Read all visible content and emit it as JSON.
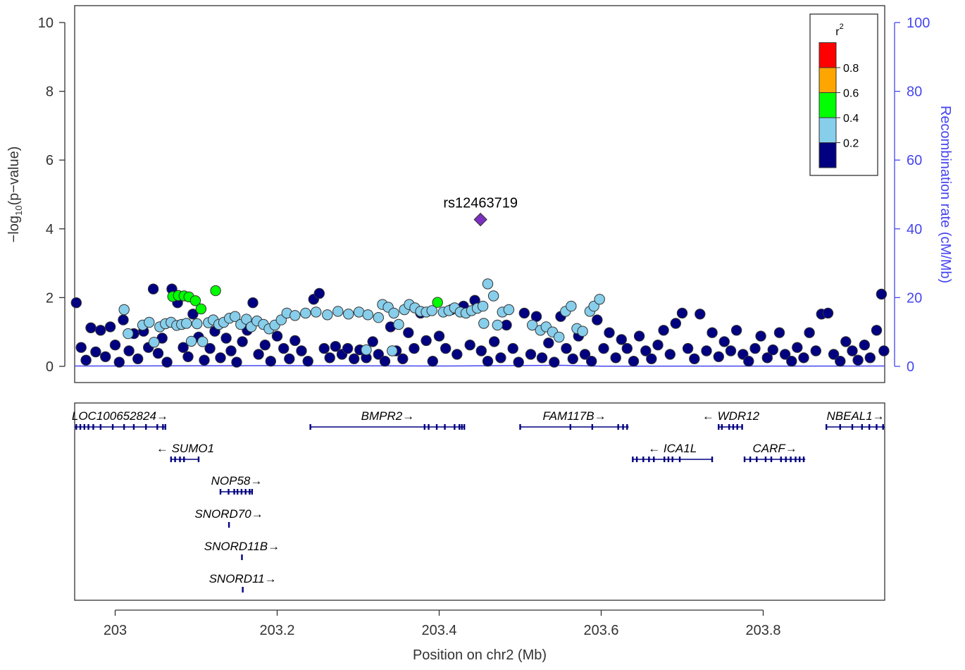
{
  "chart_data": {
    "type": "scatter",
    "xlabel": "Position on chr2 (Mb)",
    "ylabel": "−log₁₀(p−value)",
    "y2label": "Recombination rate (cM/Mb)",
    "xlim": [
      202.95,
      203.95
    ],
    "ylim": [
      -0.5,
      10.5
    ],
    "y2lim": [
      0,
      100
    ],
    "xticks": [
      "203",
      "203.2",
      "203.4",
      "203.6",
      "203.8"
    ],
    "yticks": [
      "0",
      "2",
      "4",
      "6",
      "8",
      "10"
    ],
    "y2ticks": [
      "0",
      "20",
      "40",
      "60",
      "80",
      "100"
    ],
    "legend": {
      "title": "r",
      "title_sup": "2",
      "position": "top-right",
      "bins": [
        {
          "color": "#000080",
          "label": "0.2"
        },
        {
          "color": "#87ceeb",
          "label": "0.4"
        },
        {
          "color": "#00ff00",
          "label": "0.6"
        },
        {
          "color": "#ffa500",
          "label": "0.8"
        },
        {
          "color": "#ff0000",
          "label": ""
        }
      ]
    },
    "lead_snp": {
      "label": "rs12463719",
      "x": 203.451,
      "y": 4.27,
      "color": "#7b2fbe"
    },
    "series": [
      {
        "color": "#00ff00",
        "r2_bin": "0.4-0.6",
        "points": [
          [
            203.071,
            2.03
          ],
          [
            203.078,
            2.06
          ],
          [
            203.085,
            2.05
          ],
          [
            203.091,
            2.02
          ],
          [
            203.099,
            1.91
          ],
          [
            203.106,
            1.67
          ],
          [
            203.124,
            2.2
          ],
          [
            203.398,
            1.86
          ]
        ]
      },
      {
        "color": "#87ceeb",
        "r2_bin": "0.2-0.4",
        "points": [
          [
            203.011,
            1.65
          ],
          [
            203.016,
            0.95
          ],
          [
            203.034,
            1.2
          ],
          [
            203.042,
            1.28
          ],
          [
            203.048,
            0.7
          ],
          [
            203.055,
            1.15
          ],
          [
            203.062,
            1.24
          ],
          [
            203.069,
            1.28
          ],
          [
            203.076,
            1.19
          ],
          [
            203.082,
            1.22
          ],
          [
            203.088,
            1.25
          ],
          [
            203.094,
            0.73
          ],
          [
            203.101,
            1.24
          ],
          [
            203.108,
            0.72
          ],
          [
            203.115,
            1.27
          ],
          [
            203.121,
            1.35
          ],
          [
            203.128,
            1.22
          ],
          [
            203.134,
            1.28
          ],
          [
            203.141,
            1.4
          ],
          [
            203.148,
            1.45
          ],
          [
            203.155,
            1.22
          ],
          [
            203.162,
            1.37
          ],
          [
            203.168,
            1.15
          ],
          [
            203.175,
            1.32
          ],
          [
            203.183,
            1.22
          ],
          [
            203.19,
            1.09
          ],
          [
            203.197,
            1.2
          ],
          [
            203.205,
            1.35
          ],
          [
            203.212,
            1.55
          ],
          [
            203.222,
            1.48
          ],
          [
            203.235,
            1.55
          ],
          [
            203.248,
            1.58
          ],
          [
            203.262,
            1.5
          ],
          [
            203.275,
            1.6
          ],
          [
            203.288,
            1.52
          ],
          [
            203.301,
            1.58
          ],
          [
            203.312,
            1.5
          ],
          [
            203.325,
            1.42
          ],
          [
            203.33,
            1.8
          ],
          [
            203.337,
            1.72
          ],
          [
            203.344,
            1.55
          ],
          [
            203.35,
            1.22
          ],
          [
            203.357,
            1.65
          ],
          [
            203.363,
            1.8
          ],
          [
            203.37,
            1.7
          ],
          [
            203.377,
            1.6
          ],
          [
            203.384,
            1.58
          ],
          [
            203.391,
            1.62
          ],
          [
            203.405,
            1.58
          ],
          [
            203.412,
            1.62
          ],
          [
            203.419,
            1.7
          ],
          [
            203.426,
            1.58
          ],
          [
            203.433,
            1.55
          ],
          [
            203.44,
            1.62
          ],
          [
            203.447,
            1.69
          ],
          [
            203.454,
            1.75
          ],
          [
            203.46,
            2.4
          ],
          [
            203.467,
            2.05
          ],
          [
            203.472,
            1.2
          ],
          [
            203.478,
            1.58
          ],
          [
            203.486,
            1.65
          ],
          [
            203.31,
            0.48
          ],
          [
            203.342,
            0.45
          ],
          [
            203.455,
            1.25
          ],
          [
            203.515,
            1.2
          ],
          [
            203.525,
            1.05
          ],
          [
            203.532,
            1.15
          ],
          [
            203.54,
            1.0
          ],
          [
            203.548,
            0.85
          ],
          [
            203.556,
            1.6
          ],
          [
            203.563,
            1.75
          ],
          [
            203.57,
            1.1
          ],
          [
            203.577,
            1.02
          ],
          [
            203.586,
            1.6
          ],
          [
            203.591,
            1.75
          ],
          [
            203.598,
            1.95
          ]
        ]
      },
      {
        "color": "#000080",
        "r2_bin": "0.0-0.2",
        "points": [
          [
            202.952,
            1.85
          ],
          [
            202.958,
            0.55
          ],
          [
            202.964,
            0.18
          ],
          [
            202.97,
            1.12
          ],
          [
            202.976,
            0.42
          ],
          [
            202.982,
            1.05
          ],
          [
            202.988,
            0.28
          ],
          [
            202.994,
            1.15
          ],
          [
            203.0,
            0.62
          ],
          [
            203.005,
            0.12
          ],
          [
            203.01,
            1.35
          ],
          [
            203.017,
            0.45
          ],
          [
            203.023,
            0.95
          ],
          [
            203.028,
            0.22
          ],
          [
            203.035,
            1.02
          ],
          [
            203.041,
            0.55
          ],
          [
            203.047,
            2.25
          ],
          [
            203.053,
            0.38
          ],
          [
            203.058,
            0.82
          ],
          [
            203.064,
            0.12
          ],
          [
            203.07,
            2.25
          ],
          [
            203.077,
            1.85
          ],
          [
            203.084,
            0.55
          ],
          [
            203.09,
            0.28
          ],
          [
            203.096,
            1.52
          ],
          [
            203.103,
            0.85
          ],
          [
            203.11,
            0.18
          ],
          [
            203.117,
            0.52
          ],
          [
            203.123,
            1.02
          ],
          [
            203.13,
            0.25
          ],
          [
            203.137,
            0.82
          ],
          [
            203.143,
            0.45
          ],
          [
            203.15,
            0.12
          ],
          [
            203.157,
            0.72
          ],
          [
            203.163,
            1.05
          ],
          [
            203.17,
            1.85
          ],
          [
            203.177,
            0.35
          ],
          [
            203.185,
            0.62
          ],
          [
            203.192,
            0.15
          ],
          [
            203.2,
            0.88
          ],
          [
            203.208,
            0.52
          ],
          [
            203.215,
            0.22
          ],
          [
            203.222,
            0.75
          ],
          [
            203.23,
            0.45
          ],
          [
            203.238,
            0.15
          ],
          [
            203.245,
            1.95
          ],
          [
            203.252,
            2.12
          ],
          [
            203.258,
            0.52
          ],
          [
            203.265,
            0.25
          ],
          [
            203.272,
            0.58
          ],
          [
            203.28,
            0.35
          ],
          [
            203.287,
            0.52
          ],
          [
            203.295,
            0.22
          ],
          [
            203.302,
            0.48
          ],
          [
            203.31,
            0.25
          ],
          [
            203.318,
            0.72
          ],
          [
            203.325,
            0.35
          ],
          [
            203.333,
            0.15
          ],
          [
            203.34,
            1.15
          ],
          [
            203.347,
            0.45
          ],
          [
            203.355,
            0.22
          ],
          [
            203.362,
            0.98
          ],
          [
            203.369,
            0.52
          ],
          [
            203.377,
            1.55
          ],
          [
            203.384,
            0.75
          ],
          [
            203.392,
            0.15
          ],
          [
            203.4,
            0.88
          ],
          [
            203.408,
            0.52
          ],
          [
            203.415,
            1.65
          ],
          [
            203.422,
            0.35
          ],
          [
            203.43,
            1.75
          ],
          [
            203.438,
            0.62
          ],
          [
            203.444,
            1.92
          ],
          [
            203.452,
            0.45
          ],
          [
            203.46,
            0.15
          ],
          [
            203.468,
            0.72
          ],
          [
            203.476,
            0.25
          ],
          [
            203.483,
            1.2
          ],
          [
            203.491,
            0.52
          ],
          [
            203.498,
            0.12
          ],
          [
            203.505,
            1.55
          ],
          [
            203.513,
            0.35
          ],
          [
            203.52,
            1.45
          ],
          [
            203.527,
            0.25
          ],
          [
            203.535,
            0.68
          ],
          [
            203.542,
            0.12
          ],
          [
            203.55,
            1.45
          ],
          [
            203.557,
            0.52
          ],
          [
            203.565,
            0.22
          ],
          [
            203.572,
            0.88
          ],
          [
            203.58,
            0.35
          ],
          [
            203.588,
            0.15
          ],
          [
            203.595,
            1.35
          ],
          [
            203.603,
            0.52
          ],
          [
            203.61,
            0.98
          ],
          [
            203.618,
            0.25
          ],
          [
            203.625,
            0.78
          ],
          [
            203.632,
            0.52
          ],
          [
            203.64,
            0.15
          ],
          [
            203.647,
            0.88
          ],
          [
            203.655,
            0.45
          ],
          [
            203.662,
            0.22
          ],
          [
            203.67,
            0.62
          ],
          [
            203.677,
            1.05
          ],
          [
            203.685,
            0.35
          ],
          [
            203.692,
            1.25
          ],
          [
            203.7,
            1.55
          ],
          [
            203.707,
            0.52
          ],
          [
            203.715,
            0.22
          ],
          [
            203.722,
            1.52
          ],
          [
            203.73,
            0.45
          ],
          [
            203.737,
            0.98
          ],
          [
            203.745,
            0.28
          ],
          [
            203.752,
            0.72
          ],
          [
            203.76,
            0.45
          ],
          [
            203.767,
            1.05
          ],
          [
            203.775,
            0.35
          ],
          [
            203.782,
            0.15
          ],
          [
            203.79,
            0.52
          ],
          [
            203.797,
            0.88
          ],
          [
            203.805,
            0.25
          ],
          [
            203.812,
            0.48
          ],
          [
            203.82,
            0.98
          ],
          [
            203.827,
            0.35
          ],
          [
            203.835,
            0.15
          ],
          [
            203.842,
            0.55
          ],
          [
            203.85,
            0.25
          ],
          [
            203.857,
            0.98
          ],
          [
            203.865,
            0.45
          ],
          [
            203.872,
            1.52
          ],
          [
            203.88,
            1.55
          ],
          [
            203.887,
            0.35
          ],
          [
            203.895,
            0.15
          ],
          [
            203.902,
            0.72
          ],
          [
            203.91,
            0.45
          ],
          [
            203.917,
            0.18
          ],
          [
            203.925,
            0.62
          ],
          [
            203.932,
            0.25
          ],
          [
            203.94,
            1.05
          ],
          [
            203.946,
            2.1
          ],
          [
            203.949,
            0.45
          ]
        ]
      }
    ],
    "recombination": [
      [
        202.95,
        0.1
      ],
      [
        203.2,
        0.2
      ],
      [
        203.4,
        0.1
      ],
      [
        203.55,
        0.3
      ],
      [
        203.6,
        0.05
      ],
      [
        203.95,
        0.1
      ]
    ],
    "genes": [
      {
        "name": "LOC100652824",
        "arrow": "→",
        "strand": "+",
        "start": 202.95,
        "end": 203.062,
        "row": 0,
        "exons": [
          202.952,
          202.957,
          202.962,
          202.967,
          202.973,
          202.982,
          202.997,
          203.011,
          203.023,
          203.038,
          203.052,
          203.059,
          203.062
        ]
      },
      {
        "name": "BMPR2",
        "arrow": "→",
        "strand": "+",
        "start": 203.241,
        "end": 203.432,
        "row": 0,
        "exons": [
          203.241,
          203.382,
          203.387,
          203.397,
          203.407,
          203.419,
          203.425,
          203.428,
          203.431
        ]
      },
      {
        "name": "FAM117B",
        "arrow": "→",
        "strand": "+",
        "start": 203.5,
        "end": 203.634,
        "row": 0,
        "exons": [
          203.5,
          203.562,
          203.589,
          203.621,
          203.627,
          203.632
        ]
      },
      {
        "name": "WDR12",
        "arrow": "←",
        "strand": "-",
        "start": 203.745,
        "end": 203.775,
        "row": 0,
        "exons": [
          203.745,
          203.749,
          203.758,
          203.763,
          203.768,
          203.774
        ]
      },
      {
        "name": "NBEAL1",
        "arrow": "→",
        "strand": "+",
        "start": 203.878,
        "end": 203.95,
        "row": 0,
        "exons": [
          203.878,
          203.895,
          203.91,
          203.922,
          203.931,
          203.94,
          203.948
        ]
      },
      {
        "name": "SUMO1",
        "arrow": "←",
        "strand": "-",
        "start": 203.069,
        "end": 203.104,
        "row": 1,
        "exons": [
          203.069,
          203.074,
          203.08,
          203.085,
          203.103
        ]
      },
      {
        "name": "ICA1L",
        "arrow": "←",
        "strand": "-",
        "start": 203.639,
        "end": 203.737,
        "row": 1,
        "exons": [
          203.639,
          203.644,
          203.652,
          203.659,
          203.665,
          203.678,
          203.683,
          203.688,
          203.697,
          203.737
        ]
      },
      {
        "name": "CARF",
        "arrow": "→",
        "strand": "+",
        "start": 203.777,
        "end": 203.852,
        "row": 1,
        "exons": [
          203.777,
          203.784,
          203.792,
          203.803,
          203.81,
          203.822,
          203.828,
          203.834,
          203.84,
          203.845,
          203.85
        ]
      },
      {
        "name": "NOP58",
        "arrow": "→",
        "strand": "+",
        "start": 203.13,
        "end": 203.17,
        "row": 2,
        "exons": [
          203.13,
          203.14,
          203.147,
          203.151,
          203.156,
          203.161,
          203.166,
          203.169
        ]
      },
      {
        "name": "SNORD70",
        "arrow": "→",
        "strand": "+",
        "start": 203.14,
        "end": 203.141,
        "row": 3,
        "exons": [
          203.1405
        ]
      },
      {
        "name": "SNORD11B",
        "arrow": "→",
        "strand": "+",
        "start": 203.156,
        "end": 203.157,
        "row": 4,
        "exons": [
          203.1565
        ]
      },
      {
        "name": "SNORD11",
        "arrow": "→",
        "strand": "+",
        "start": 203.157,
        "end": 203.158,
        "row": 5,
        "exons": [
          203.1575
        ]
      }
    ]
  }
}
